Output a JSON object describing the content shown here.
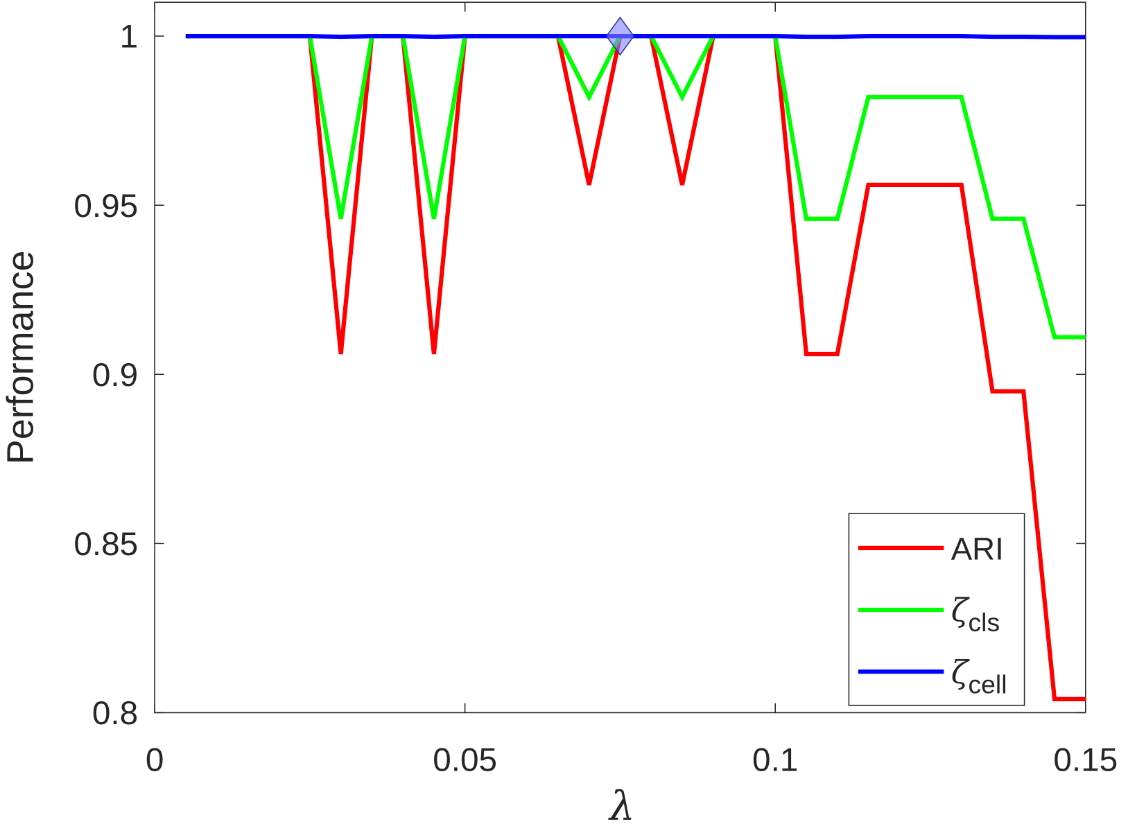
{
  "chart_data": {
    "type": "line",
    "x_label": "λ",
    "y_label": "Performance",
    "x": [
      0.005,
      0.01,
      0.015,
      0.02,
      0.025,
      0.03,
      0.035,
      0.04,
      0.045,
      0.05,
      0.055,
      0.06,
      0.065,
      0.07,
      0.075,
      0.08,
      0.085,
      0.09,
      0.095,
      0.1,
      0.105,
      0.11,
      0.115,
      0.12,
      0.125,
      0.13,
      0.135,
      0.14,
      0.145,
      0.15
    ],
    "series": [
      {
        "name": "ARI",
        "color": "#ff0000",
        "values": [
          1,
          1,
          1,
          1,
          1,
          0.906,
          1,
          1,
          0.906,
          1,
          1,
          1,
          1,
          0.956,
          1,
          1,
          0.956,
          1,
          1,
          1,
          0.906,
          0.906,
          0.956,
          0.956,
          0.956,
          0.956,
          0.895,
          0.895,
          0.804,
          0.804
        ]
      },
      {
        "name": "ζ",
        "subscript": "cls",
        "color": "#00ff00",
        "values": [
          1,
          1,
          1,
          1,
          1,
          0.946,
          1,
          1,
          0.946,
          1,
          1,
          1,
          1,
          0.982,
          1,
          1,
          0.982,
          1,
          1,
          1,
          0.946,
          0.946,
          0.982,
          0.982,
          0.982,
          0.982,
          0.946,
          0.946,
          0.911,
          0.911
        ]
      },
      {
        "name": "ζ",
        "subscript": "cell",
        "color": "#0000ff",
        "values": [
          1,
          1,
          1,
          1,
          1,
          0.9998,
          1,
          1,
          0.9998,
          1,
          1,
          1,
          1,
          1,
          1,
          1,
          1,
          1,
          1,
          1,
          0.9998,
          0.9998,
          1,
          1,
          1,
          1,
          0.9998,
          0.9998,
          0.9997,
          0.9997
        ]
      }
    ],
    "marker": {
      "x": 0.075,
      "y": 1,
      "color": "#8080ff"
    },
    "xlim": [
      0,
      0.15
    ],
    "ylim": [
      0.8,
      1.01
    ],
    "xticks": [
      0,
      0.05,
      0.1,
      0.15
    ],
    "yticks": [
      0.8,
      0.85,
      0.9,
      0.95,
      1
    ],
    "legend": "lower right"
  }
}
